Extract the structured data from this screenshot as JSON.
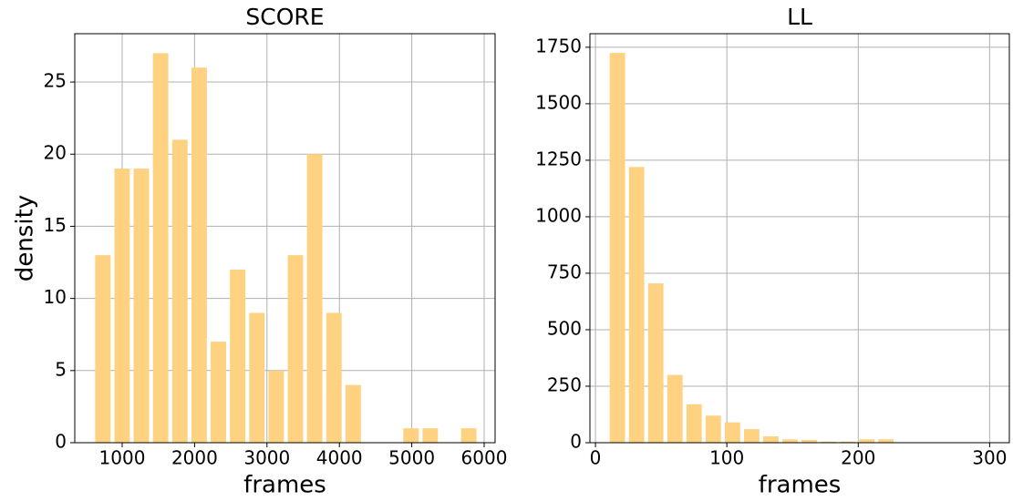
{
  "chart_data": [
    {
      "type": "histogram",
      "title": "SCORE",
      "x_label": "frames",
      "y_label": "density",
      "color": "#fed280",
      "grid": true,
      "bins": [
        600,
        866,
        1132,
        1398,
        1664,
        1930,
        2196,
        2462,
        2728,
        2994,
        3260,
        3526,
        3792,
        4058,
        4324,
        4590,
        4856,
        5122,
        5388,
        5654,
        5920
      ],
      "values": [
        13,
        19,
        19,
        27,
        21,
        26,
        7,
        12,
        9,
        5,
        13,
        20,
        9,
        4,
        0,
        0,
        1,
        1,
        0,
        1
      ],
      "xlim": [
        345,
        6151
      ],
      "xticks": [
        1000,
        2000,
        3000,
        4000,
        5000,
        6000
      ],
      "ylim": [
        0,
        28.35
      ],
      "yticks": [
        0,
        5,
        10,
        15,
        20,
        25
      ]
    },
    {
      "type": "histogram",
      "title": "LL",
      "x_label": "frames",
      "color": "#fed280",
      "grid": true,
      "bins": [
        9.4,
        24,
        38.6,
        53.2,
        67.8,
        82.4,
        97,
        111.6,
        126.2,
        140.8,
        155.4,
        170,
        184.6,
        199.2,
        213.8,
        228.4,
        243,
        257.6,
        272.2,
        286.8,
        301.4
      ],
      "values": [
        1725,
        1220,
        705,
        300,
        170,
        120,
        90,
        60,
        28,
        15,
        12,
        5,
        5,
        15,
        15,
        1,
        0,
        0,
        0,
        1
      ],
      "xlim": [
        -4.2,
        315
      ],
      "xticks": [
        0,
        100,
        200,
        300
      ],
      "ylim": [
        0,
        1810
      ],
      "yticks": [
        0,
        250,
        500,
        750,
        1000,
        1250,
        1500,
        1750
      ]
    }
  ]
}
